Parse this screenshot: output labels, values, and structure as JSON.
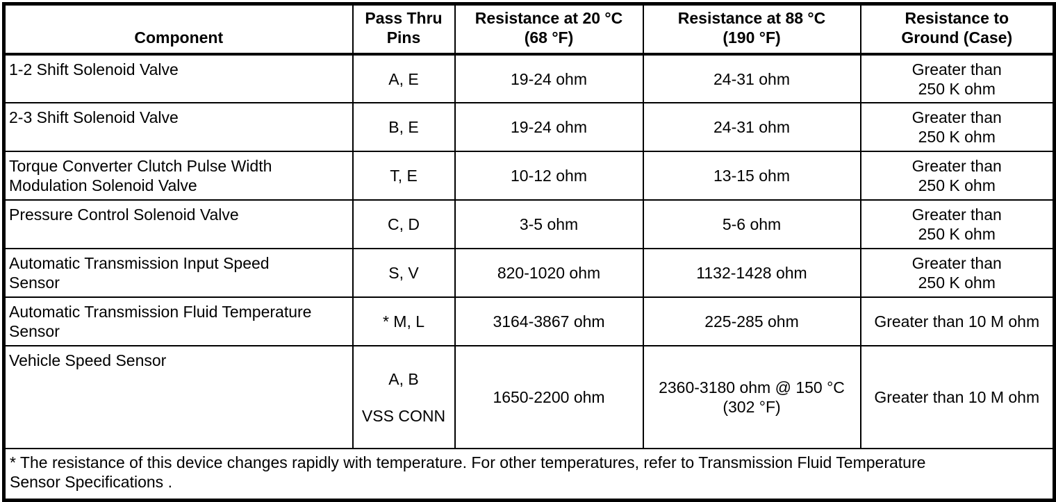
{
  "colors": {
    "text": "#000000",
    "background": "#ffffff",
    "border": "#000000"
  },
  "table": {
    "headers": [
      {
        "label": "Component"
      },
      {
        "label": "Pass Thru\nPins"
      },
      {
        "label": "Resistance at 20 °C\n(68 °F)"
      },
      {
        "label": "Resistance at 88 °C\n(190 °F)"
      },
      {
        "label": "Resistance to\nGround (Case)"
      }
    ],
    "rows": [
      {
        "component": "1-2 Shift Solenoid Valve",
        "pins": "A, E",
        "r20": "19-24 ohm",
        "r88": "24-31 ohm",
        "ground": "Greater than\n250 K ohm"
      },
      {
        "component": "2-3 Shift Solenoid Valve",
        "pins": "B, E",
        "r20": "19-24 ohm",
        "r88": "24-31 ohm",
        "ground": "Greater than\n250 K ohm"
      },
      {
        "component": "Torque Converter Clutch Pulse Width\nModulation Solenoid Valve",
        "pins": "T, E",
        "r20": "10-12 ohm",
        "r88": "13-15 ohm",
        "ground": "Greater than\n250 K ohm"
      },
      {
        "component": "Pressure Control Solenoid Valve",
        "pins": "C, D",
        "r20": "3-5 ohm",
        "r88": "5-6 ohm",
        "ground": "Greater than\n250 K ohm"
      },
      {
        "component": "Automatic Transmission Input Speed\nSensor",
        "pins": "S, V",
        "r20": "820-1020 ohm",
        "r88": "1132-1428 ohm",
        "ground": "Greater than\n250 K ohm"
      },
      {
        "component": "Automatic Transmission Fluid Temperature\nSensor",
        "pins": "* M, L",
        "r20": "3164-3867 ohm",
        "r88": "225-285 ohm",
        "ground": "Greater than 10 M ohm"
      },
      {
        "component": "Vehicle Speed Sensor",
        "pins_top": "A, B",
        "pins_bottom": "VSS CONN",
        "r20": "1650-2200 ohm",
        "r88": "2360-3180 ohm @ 150 °C\n(302 °F)",
        "ground": "Greater than 10 M ohm"
      }
    ],
    "footnote": "* The resistance of this device changes rapidly with temperature. For other temperatures, refer to Transmission Fluid Temperature\nSensor Specifications ."
  }
}
